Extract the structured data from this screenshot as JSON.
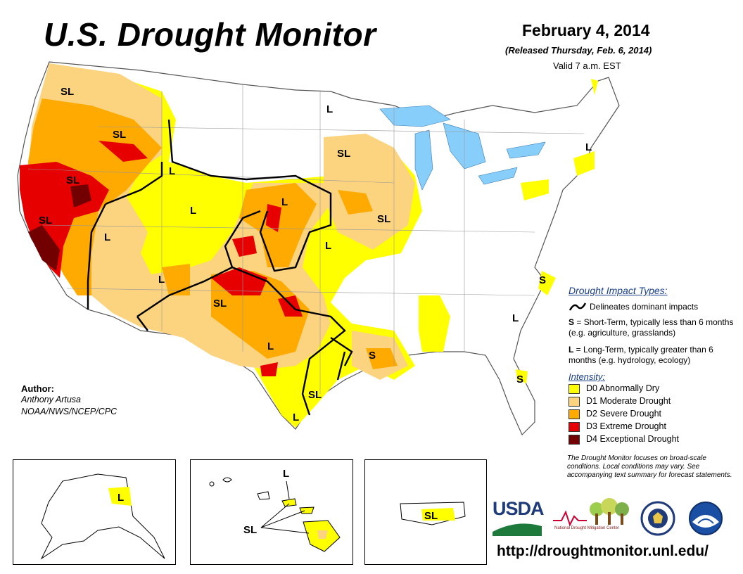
{
  "header": {
    "title": "U.S. Drought Monitor",
    "date": "February 4, 2014",
    "released": "(Released Thursday, Feb. 6, 2014)",
    "valid": "Valid 7 a.m. EST"
  },
  "legend": {
    "impact_title": "Drought Impact Types:",
    "delineates": "Delineates dominant impacts",
    "short_term_key": "S",
    "short_term_text": " = Short-Term, typically less than 6 months (e.g. agriculture, grasslands)",
    "long_term_key": "L",
    "long_term_text": " = Long-Term, typically greater than 6 months (e.g. hydrology, ecology)",
    "intensity_title": "Intensity:",
    "categories": [
      {
        "label": "D0 Abnormally Dry",
        "color": "#ffff00"
      },
      {
        "label": "D1 Moderate Drought",
        "color": "#fcd37f"
      },
      {
        "label": "D2 Severe Drought",
        "color": "#ffaa00"
      },
      {
        "label": "D3 Extreme Drought",
        "color": "#e60000"
      },
      {
        "label": "D4 Exceptional Drought",
        "color": "#730000"
      }
    ],
    "note": "The Drought Monitor focuses on broad-scale conditions. Local conditions may vary. See accompanying text summary for forecast statements."
  },
  "author": {
    "label": "Author:",
    "name": "Anthony Artusa",
    "org": "NOAA/NWS/NCEP/CPC"
  },
  "map_labels": {
    "sl_pnw": "SL",
    "sl_idaho": "SL",
    "sl_nevada": "SL",
    "sl_california": "SL",
    "l_oregon": "L",
    "l_montana": "L",
    "l_utah": "L",
    "l_nevada": "L",
    "l_arizona": "L",
    "sl_newmexico": "SL",
    "l_nebraska": "L",
    "l_kansas": "L",
    "l_northdakota": "L",
    "sl_minnesota": "SL",
    "sl_iowa": "SL",
    "l_texas": "L",
    "sl_texas_coast": "SL",
    "l_south_texas": "L",
    "s_louisiana": "S",
    "s_virginia": "S",
    "l_carolina": "L",
    "s_florida": "S",
    "l_newengland": "L",
    "l_alaska": "L",
    "l_hawaii": "L",
    "sl_hawaii": "SL",
    "sl_puertorico": "SL"
  },
  "logos": {
    "usda": "USDA",
    "ndmc": "National Drought Mitigation Center"
  },
  "url": "http://droughtmonitor.unl.edu/",
  "colors": {
    "water": "#87cefa",
    "d0": "#ffff00",
    "d1": "#fcd37f",
    "d2": "#ffaa00",
    "d3": "#e60000",
    "d4": "#730000",
    "impact_line": "#000000",
    "legend_title": "#1a3f8a"
  }
}
